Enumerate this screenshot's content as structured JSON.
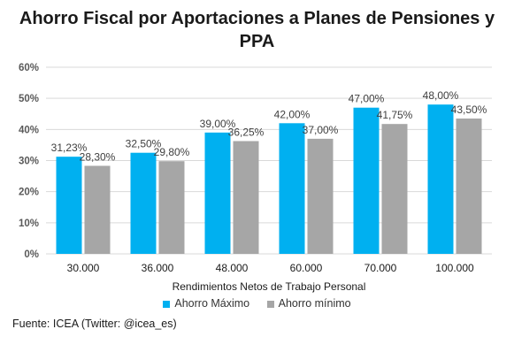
{
  "title": "Ahorro Fiscal por Aportaciones a Planes de Pensiones y PPA",
  "source": "Fuente: ICEA (Twitter: @icea_es)",
  "colors": {
    "series1": "#00b0f0",
    "series2": "#a6a6a6",
    "grid": "#d9d9d9",
    "text": "#595959"
  },
  "chart_data": {
    "type": "bar",
    "title": "Ahorro Fiscal por Aportaciones a Planes de Pensiones y PPA",
    "xlabel": "Rendimientos Netos de Trabajo Personal",
    "ylabel": "",
    "categories": [
      "30.000",
      "36.000",
      "48.000",
      "60.000",
      "70.000",
      "100.000"
    ],
    "ylim": [
      0,
      60
    ],
    "yticks": [
      "0%",
      "10%",
      "20%",
      "30%",
      "40%",
      "50%",
      "60%"
    ],
    "grid": true,
    "legend": "bottom",
    "series": [
      {
        "name": "Ahorro Máximo",
        "values": [
          31.23,
          32.5,
          39.0,
          42.0,
          47.0,
          48.0
        ],
        "labels": [
          "31,23%",
          "32,50%",
          "39,00%",
          "42,00%",
          "47,00%",
          "48,00%"
        ]
      },
      {
        "name": "Ahorro mínimo",
        "values": [
          28.3,
          29.8,
          36.25,
          37.0,
          41.75,
          43.5
        ],
        "labels": [
          "28,30%",
          "29,80%",
          "36,25%",
          "37,00%",
          "41,75%",
          "43,50%"
        ]
      }
    ]
  }
}
